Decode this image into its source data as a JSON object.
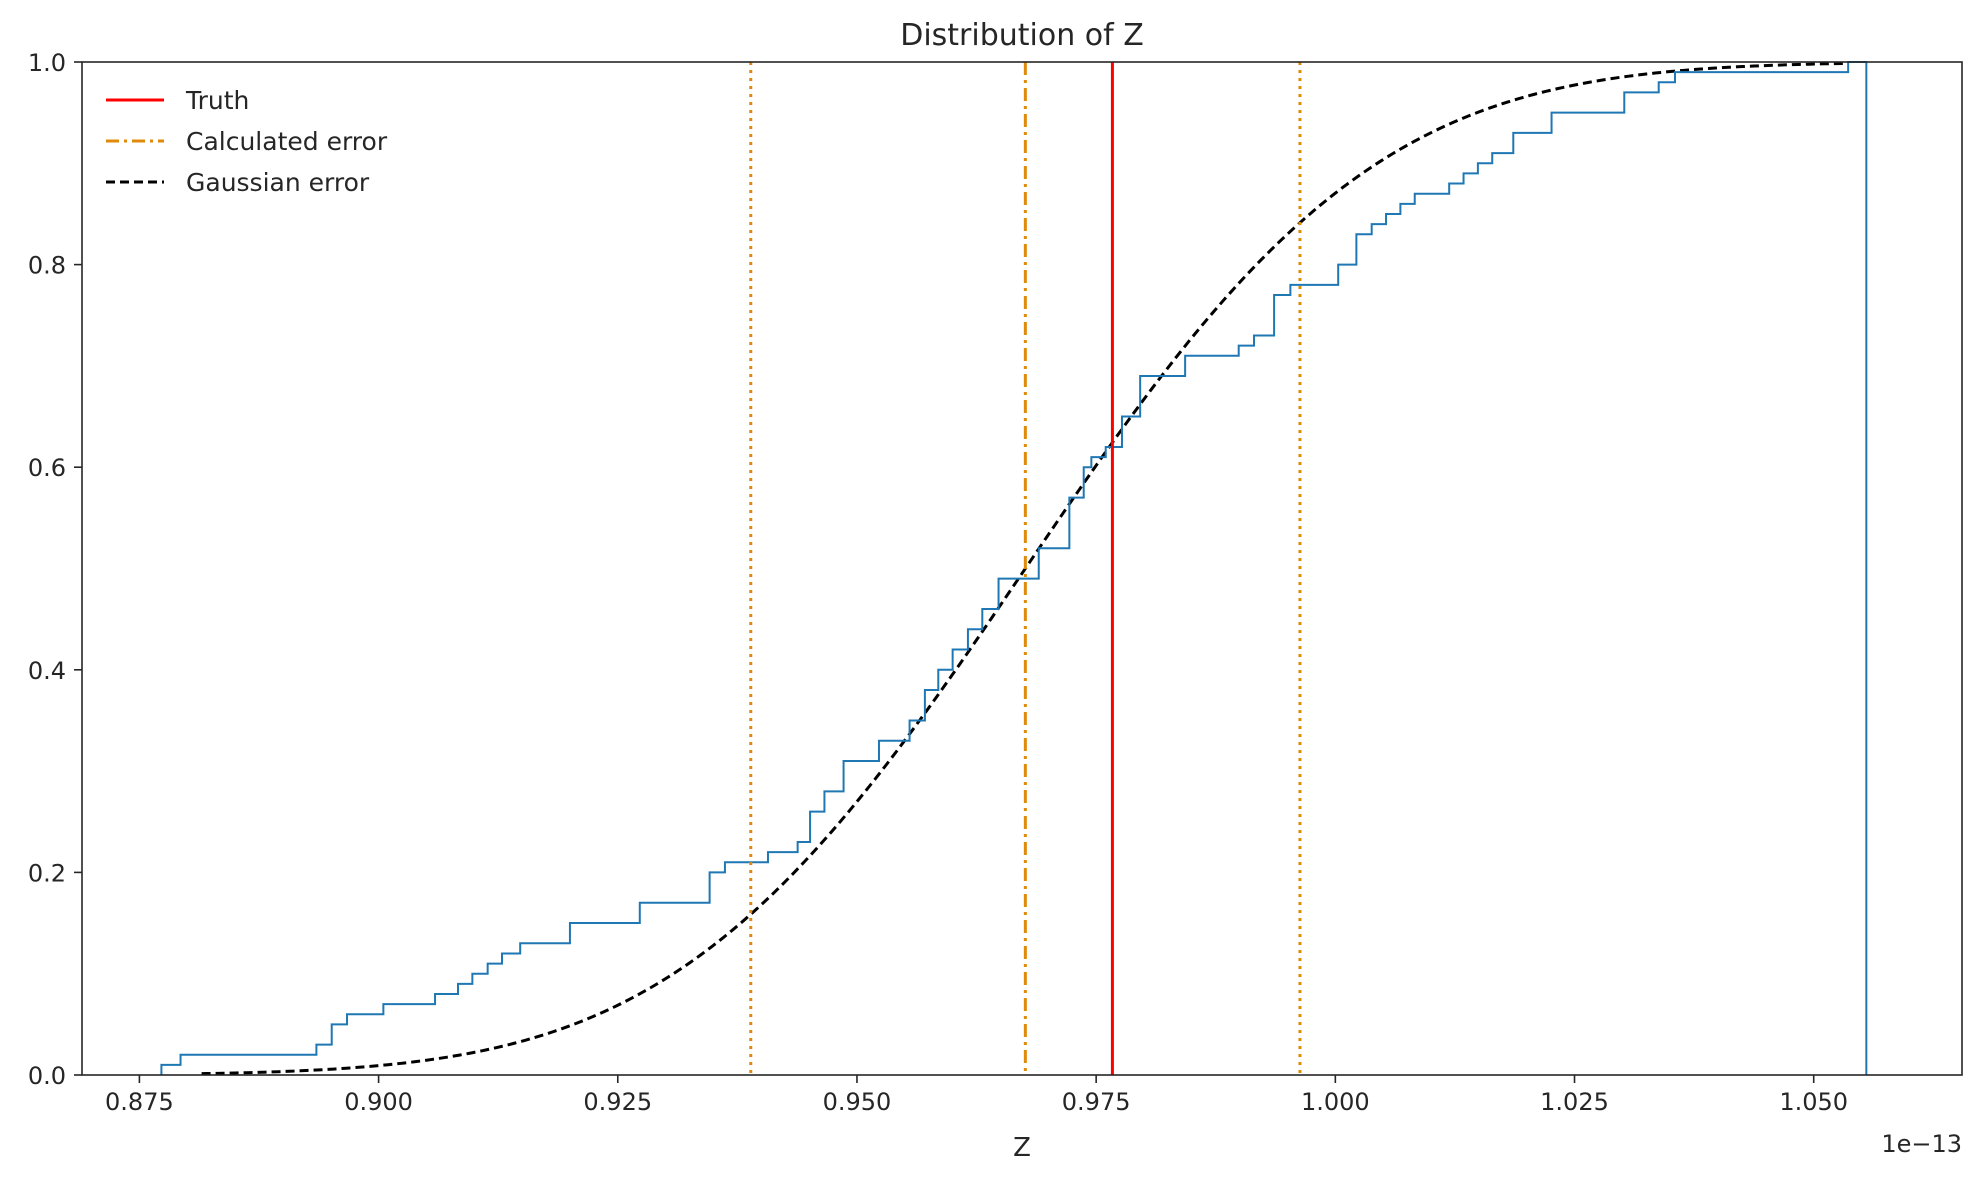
{
  "chart_data": {
    "type": "line",
    "title": "Distribution of Z",
    "xlabel": "Z",
    "ylabel": "",
    "x_offset_label": "1e−13",
    "xlim": [
      0.869,
      1.0655
    ],
    "ylim": [
      0,
      1.0
    ],
    "xticks": [
      0.875,
      0.9,
      0.925,
      0.95,
      0.975,
      1.0,
      1.025,
      1.05
    ],
    "xtick_labels": [
      "0.875",
      "0.900",
      "0.925",
      "0.950",
      "0.975",
      "1.000",
      "1.025",
      "1.050"
    ],
    "yticks": [
      0.0,
      0.2,
      0.4,
      0.6,
      0.8,
      1.0
    ],
    "ytick_labels": [
      "0.0",
      "0.2",
      "0.4",
      "0.6",
      "0.8",
      "1.0"
    ],
    "grid": false,
    "legend_position": "top-left",
    "legend": [
      {
        "label": "Truth",
        "color": "#ff0000",
        "style": "solid"
      },
      {
        "label": "Calculated error",
        "color": "#e08a0b",
        "style": "dashdot"
      },
      {
        "label": "Gaussian error",
        "color": "#000000",
        "style": "dashed"
      }
    ],
    "truth": 0.9767,
    "calculated_mean": 0.9676,
    "calculated_bounds": [
      0.9389,
      0.9963
    ],
    "gaussian": {
      "mean": 0.9676,
      "sigma": 0.0287,
      "x_range": [
        0.8815,
        1.0535
      ]
    },
    "ecdf": {
      "color": "#1f77b4",
      "x": [
        0.8773,
        0.8793,
        0.8935,
        0.8951,
        0.8967,
        0.9005,
        0.9059,
        0.9083,
        0.9098,
        0.9114,
        0.9129,
        0.9148,
        0.92,
        0.9273,
        0.9346,
        0.9362,
        0.939,
        0.9407,
        0.9438,
        0.9451,
        0.9466,
        0.9486,
        0.9523,
        0.9555,
        0.9571,
        0.9585,
        0.96,
        0.9616,
        0.9631,
        0.9648,
        0.9667,
        0.969,
        0.9722,
        0.9737,
        0.9745,
        0.976,
        0.9777,
        0.9796,
        0.9843,
        0.9899,
        0.9915,
        0.9936,
        0.9953,
        1.0003,
        1.0022,
        1.0038,
        1.0053,
        1.0068,
        1.0083,
        1.0119,
        1.0134,
        1.0149,
        1.0164,
        1.0186,
        1.0226,
        1.0302,
        1.0338,
        1.0355,
        1.0536,
        1.0555
      ],
      "y": [
        0.01,
        0.02,
        0.03,
        0.05,
        0.06,
        0.07,
        0.08,
        0.09,
        0.1,
        0.11,
        0.12,
        0.13,
        0.15,
        0.17,
        0.2,
        0.21,
        0.21,
        0.22,
        0.23,
        0.26,
        0.28,
        0.31,
        0.33,
        0.35,
        0.38,
        0.4,
        0.42,
        0.44,
        0.46,
        0.49,
        0.49,
        0.52,
        0.57,
        0.6,
        0.61,
        0.62,
        0.65,
        0.69,
        0.71,
        0.72,
        0.73,
        0.77,
        0.78,
        0.8,
        0.83,
        0.84,
        0.85,
        0.86,
        0.87,
        0.88,
        0.89,
        0.9,
        0.91,
        0.93,
        0.95,
        0.97,
        0.98,
        0.99,
        1.0,
        1.0
      ]
    }
  }
}
